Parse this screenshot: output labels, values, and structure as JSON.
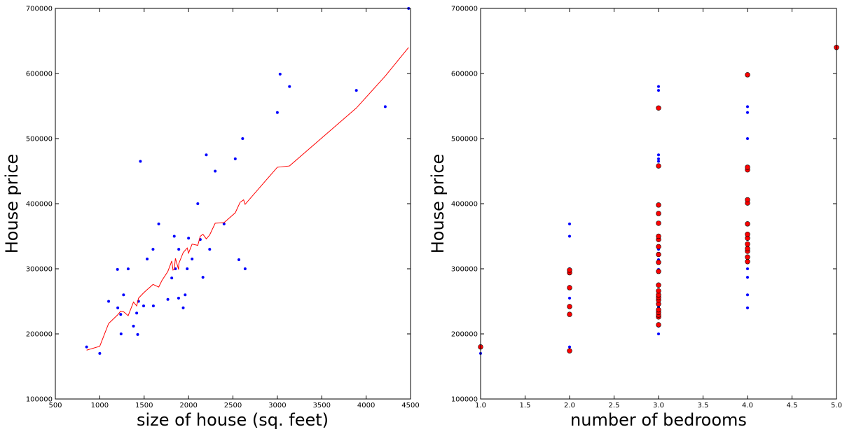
{
  "chart_data": [
    {
      "type": "scatter",
      "title": "",
      "xlabel": "size of house (sq. feet)",
      "ylabel": "House price",
      "xlim": [
        500,
        4500
      ],
      "ylim": [
        100000,
        700000
      ],
      "xticks": [
        "500",
        "1000",
        "1500",
        "2000",
        "2500",
        "3000",
        "3500",
        "4000",
        "4500"
      ],
      "yticks": [
        "100000",
        "200000",
        "300000",
        "400000",
        "500000",
        "600000",
        "700000"
      ],
      "grid": false,
      "series": [
        {
          "type": "scatter",
          "color": "#0000ff",
          "points": [
            [
              852,
              180000
            ],
            [
              1000,
              170000
            ],
            [
              1100,
              250000
            ],
            [
              1200,
              299000
            ],
            [
              1203,
              240000
            ],
            [
              1236,
              230000
            ],
            [
              1240,
              200000
            ],
            [
              1268,
              260000
            ],
            [
              1320,
              299900
            ],
            [
              1380,
              212000
            ],
            [
              1416,
              232000
            ],
            [
              1427,
              199000
            ],
            [
              1437,
              250000
            ],
            [
              1458,
              465000
            ],
            [
              1494,
              243000
            ],
            [
              1534,
              315000
            ],
            [
              1600,
              330000
            ],
            [
              1604,
              243000
            ],
            [
              1664,
              369000
            ],
            [
              1767,
              252900
            ],
            [
              1811,
              285900
            ],
            [
              1839,
              350000
            ],
            [
              1852,
              300000
            ],
            [
              1888,
              255000
            ],
            [
              1890,
              330000
            ],
            [
              1940,
              240000
            ],
            [
              1962,
              260000
            ],
            [
              1985,
              300000
            ],
            [
              2000,
              347000
            ],
            [
              2040,
              315000
            ],
            [
              2104,
              400000
            ],
            [
              2132,
              345000
            ],
            [
              2162,
              287000
            ],
            [
              2200,
              475000
            ],
            [
              2238,
              330000
            ],
            [
              2300,
              450000
            ],
            [
              2400,
              369000
            ],
            [
              2526,
              469000
            ],
            [
              2567,
              314000
            ],
            [
              2609,
              500000
            ],
            [
              2637,
              300000
            ],
            [
              3000,
              540000
            ],
            [
              3031,
              599000
            ],
            [
              3137,
              580000
            ],
            [
              3890,
              574000
            ],
            [
              4215,
              549000
            ],
            [
              4478,
              700000
            ]
          ]
        },
        {
          "type": "line",
          "color": "#ff0000",
          "points": [
            [
              852,
              175000
            ],
            [
              1000,
              181000
            ],
            [
              1100,
              216000
            ],
            [
              1200,
              229000
            ],
            [
              1236,
              235000
            ],
            [
              1268,
              234000
            ],
            [
              1320,
              228000
            ],
            [
              1380,
              249000
            ],
            [
              1416,
              243000
            ],
            [
              1437,
              255000
            ],
            [
              1494,
              263000
            ],
            [
              1534,
              268000
            ],
            [
              1600,
              276000
            ],
            [
              1664,
              272000
            ],
            [
              1700,
              282000
            ],
            [
              1767,
              296000
            ],
            [
              1811,
              312000
            ],
            [
              1825,
              298000
            ],
            [
              1839,
              299000
            ],
            [
              1852,
              316000
            ],
            [
              1888,
              299000
            ],
            [
              1890,
              308000
            ],
            [
              1940,
              325000
            ],
            [
              1985,
              332000
            ],
            [
              2000,
              324000
            ],
            [
              2040,
              338000
            ],
            [
              2104,
              336000
            ],
            [
              2132,
              350000
            ],
            [
              2162,
              353000
            ],
            [
              2200,
              346000
            ],
            [
              2238,
              352000
            ],
            [
              2300,
              370000
            ],
            [
              2400,
              371000
            ],
            [
              2526,
              386000
            ],
            [
              2580,
              402000
            ],
            [
              2620,
              406000
            ],
            [
              2637,
              399000
            ],
            [
              3000,
              456000
            ],
            [
              3137,
              458000
            ],
            [
              3890,
              547000
            ],
            [
              4215,
              596000
            ],
            [
              4478,
              640000
            ]
          ]
        }
      ]
    },
    {
      "type": "scatter",
      "title": "",
      "xlabel": "number of bedrooms",
      "ylabel": "House price",
      "xlim": [
        1.0,
        5.0
      ],
      "ylim": [
        100000,
        700000
      ],
      "xticks": [
        "1.0",
        "1.5",
        "2.0",
        "2.5",
        "3.0",
        "3.5",
        "4.0",
        "4.5",
        "5.0"
      ],
      "yticks": [
        "100000",
        "200000",
        "300000",
        "400000",
        "500000",
        "600000",
        "700000"
      ],
      "grid": false,
      "series": [
        {
          "type": "scatter",
          "color": "#0000ff",
          "points": [
            [
              1,
              170000
            ],
            [
              2,
              180000
            ],
            [
              2,
              230000
            ],
            [
              2,
              242000
            ],
            [
              2,
              255000
            ],
            [
              2,
              300000
            ],
            [
              2,
              350000
            ],
            [
              2,
              369000
            ],
            [
              3,
              200000
            ],
            [
              3,
              212000
            ],
            [
              3,
              232000
            ],
            [
              3,
              240000
            ],
            [
              3,
              243000
            ],
            [
              3,
              250000
            ],
            [
              3,
              260000
            ],
            [
              3,
              299000
            ],
            [
              3,
              314000
            ],
            [
              3,
              330000
            ],
            [
              3,
              465000
            ],
            [
              3,
              469000
            ],
            [
              3,
              475000
            ],
            [
              3,
              574000
            ],
            [
              3,
              580000
            ],
            [
              4,
              240000
            ],
            [
              4,
              260000
            ],
            [
              4,
              287000
            ],
            [
              4,
              300000
            ],
            [
              4,
              330000
            ],
            [
              4,
              345000
            ],
            [
              4,
              347000
            ],
            [
              4,
              500000
            ],
            [
              4,
              540000
            ],
            [
              4,
              549000
            ],
            [
              4,
              599000
            ]
          ]
        },
        {
          "type": "scatter",
          "color": "#ff0000",
          "points": [
            [
              1,
              180000
            ],
            [
              2,
              174000
            ],
            [
              2,
              230000
            ],
            [
              2,
              242000
            ],
            [
              2,
              271000
            ],
            [
              2,
              294000
            ],
            [
              2,
              298000
            ],
            [
              3,
              214000
            ],
            [
              3,
              226000
            ],
            [
              3,
              229000
            ],
            [
              3,
              233000
            ],
            [
              3,
              237000
            ],
            [
              3,
              246000
            ],
            [
              3,
              252000
            ],
            [
              3,
              256000
            ],
            [
              3,
              260000
            ],
            [
              3,
              266000
            ],
            [
              3,
              275000
            ],
            [
              3,
              296000
            ],
            [
              3,
              310000
            ],
            [
              3,
              322000
            ],
            [
              3,
              334000
            ],
            [
              3,
              345000
            ],
            [
              3,
              350000
            ],
            [
              3,
              370000
            ],
            [
              3,
              385000
            ],
            [
              3,
              398000
            ],
            [
              3,
              458000
            ],
            [
              3,
              547000
            ],
            [
              4,
              311000
            ],
            [
              4,
              318000
            ],
            [
              4,
              327000
            ],
            [
              4,
              331000
            ],
            [
              4,
              338000
            ],
            [
              4,
              347000
            ],
            [
              4,
              353000
            ],
            [
              4,
              369000
            ],
            [
              4,
              401000
            ],
            [
              4,
              406000
            ],
            [
              4,
              452000
            ],
            [
              4,
              456000
            ],
            [
              4,
              598000
            ],
            [
              5,
              640000
            ]
          ]
        }
      ]
    }
  ]
}
